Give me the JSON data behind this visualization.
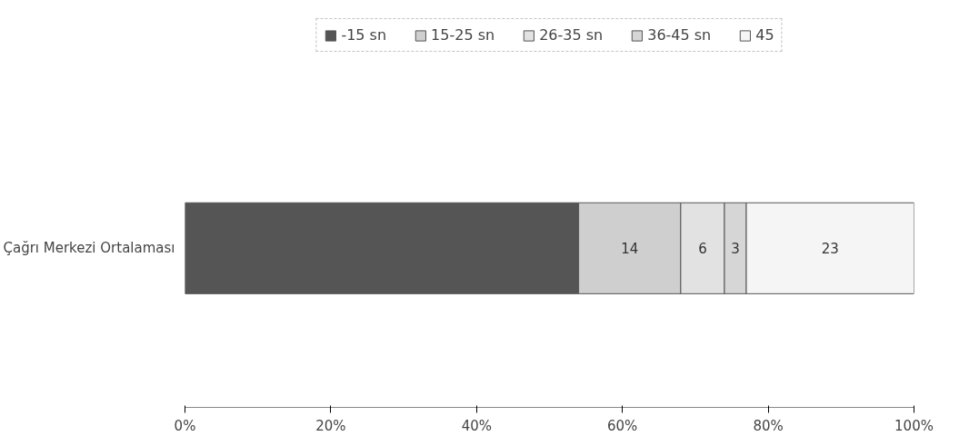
{
  "chart_data": {
    "type": "bar",
    "orientation": "horizontal",
    "stacked": true,
    "categories": [
      "Çağrı Merkezi Ortalaması"
    ],
    "series": [
      {
        "name": "-15 sn",
        "color": "#555555",
        "values": [
          54
        ],
        "value_labels": [
          null
        ]
      },
      {
        "name": "15-25 sn",
        "color": "#cfcfcf",
        "values": [
          14
        ],
        "value_labels": [
          "14"
        ]
      },
      {
        "name": "26-35 sn",
        "color": "#e2e2e2",
        "values": [
          6
        ],
        "value_labels": [
          "6"
        ]
      },
      {
        "name": "36-45 sn",
        "color": "#d6d6d6",
        "values": [
          3
        ],
        "value_labels": [
          "3"
        ]
      },
      {
        "name": "45",
        "color": "#f5f5f5",
        "values": [
          23
        ],
        "value_labels": [
          "23"
        ]
      }
    ],
    "xlim": [
      0,
      100
    ],
    "xticks": [
      {
        "value": 0,
        "label": "0%"
      },
      {
        "value": 20,
        "label": "20%"
      },
      {
        "value": 40,
        "label": "40%"
      },
      {
        "value": 60,
        "label": "60%"
      },
      {
        "value": 80,
        "label": "80%"
      },
      {
        "value": 100,
        "label": "100%"
      }
    ],
    "legend": "top",
    "grid": false
  }
}
